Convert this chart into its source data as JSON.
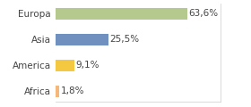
{
  "categories": [
    "Africa",
    "America",
    "Asia",
    "Europa"
  ],
  "values": [
    1.8,
    9.1,
    25.5,
    63.6
  ],
  "labels": [
    "1,8%",
    "9,1%",
    "25,5%",
    "63,6%"
  ],
  "colors": [
    "#f5b87a",
    "#f5c842",
    "#7090c0",
    "#b5c98e"
  ],
  "xlim": [
    0,
    80
  ],
  "background_color": "#ffffff",
  "bar_height": 0.45,
  "label_fontsize": 7.5,
  "category_fontsize": 7.5
}
